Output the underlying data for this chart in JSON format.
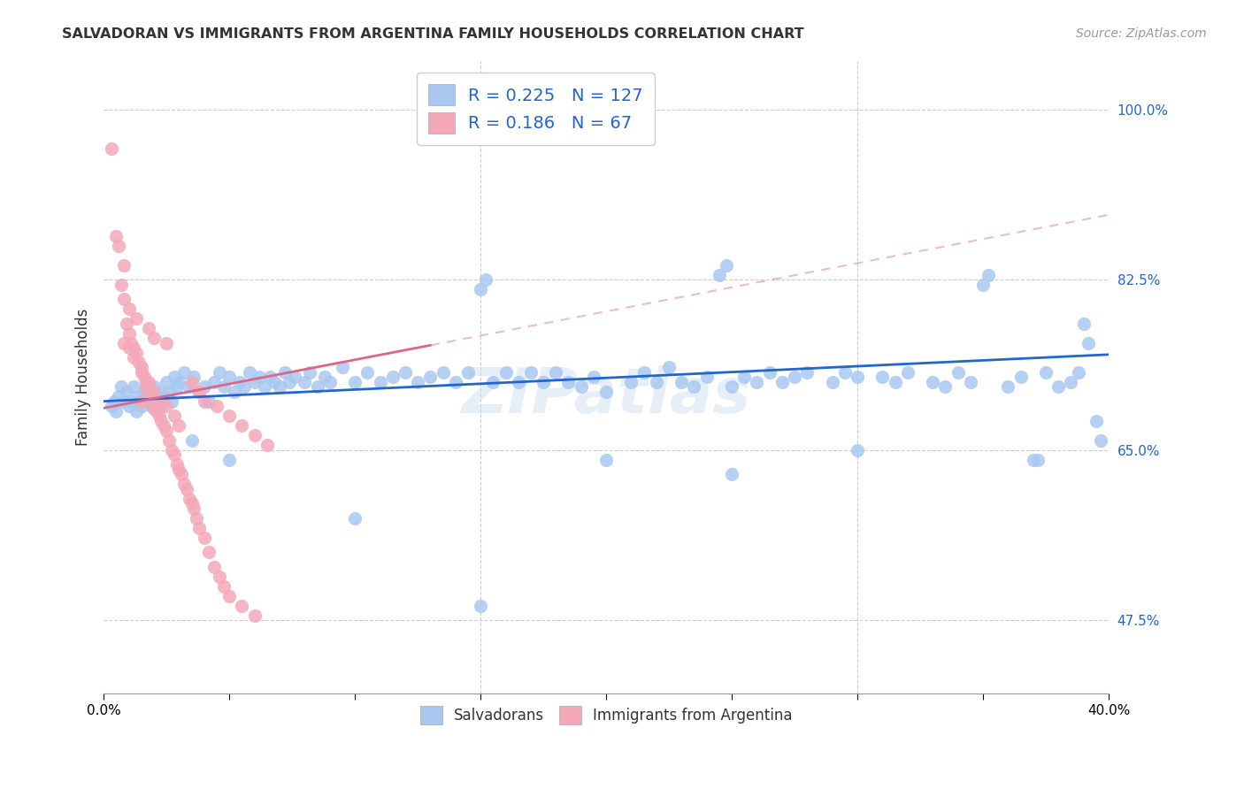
{
  "title": "SALVADORAN VS IMMIGRANTS FROM ARGENTINA FAMILY HOUSEHOLDS CORRELATION CHART",
  "source": "Source: ZipAtlas.com",
  "ylabel": "Family Households",
  "yticks": [
    "47.5%",
    "65.0%",
    "82.5%",
    "100.0%"
  ],
  "ytick_vals": [
    0.475,
    0.65,
    0.825,
    1.0
  ],
  "xlim": [
    0.0,
    0.4
  ],
  "ylim": [
    0.4,
    1.05
  ],
  "blue_color": "#A8C8F0",
  "pink_color": "#F4A8B8",
  "blue_line_color": "#2266CC",
  "pink_line_color": "#DD6688",
  "legend_R1": "0.225",
  "legend_N1": "127",
  "legend_R2": "0.186",
  "legend_N2": "67",
  "watermark": "ZIPatlas",
  "blue_scatter": [
    [
      0.003,
      0.695
    ],
    [
      0.004,
      0.7
    ],
    [
      0.005,
      0.69
    ],
    [
      0.006,
      0.705
    ],
    [
      0.007,
      0.715
    ],
    [
      0.008,
      0.7
    ],
    [
      0.009,
      0.71
    ],
    [
      0.01,
      0.695
    ],
    [
      0.011,
      0.7
    ],
    [
      0.012,
      0.715
    ],
    [
      0.013,
      0.69
    ],
    [
      0.014,
      0.705
    ],
    [
      0.015,
      0.695
    ],
    [
      0.016,
      0.71
    ],
    [
      0.017,
      0.72
    ],
    [
      0.018,
      0.7
    ],
    [
      0.019,
      0.695
    ],
    [
      0.02,
      0.715
    ],
    [
      0.021,
      0.7
    ],
    [
      0.022,
      0.71
    ],
    [
      0.023,
      0.695
    ],
    [
      0.024,
      0.705
    ],
    [
      0.025,
      0.72
    ],
    [
      0.026,
      0.71
    ],
    [
      0.027,
      0.7
    ],
    [
      0.028,
      0.725
    ],
    [
      0.029,
      0.715
    ],
    [
      0.03,
      0.72
    ],
    [
      0.032,
      0.73
    ],
    [
      0.034,
      0.715
    ],
    [
      0.036,
      0.725
    ],
    [
      0.038,
      0.71
    ],
    [
      0.04,
      0.715
    ],
    [
      0.042,
      0.7
    ],
    [
      0.044,
      0.72
    ],
    [
      0.046,
      0.73
    ],
    [
      0.048,
      0.715
    ],
    [
      0.05,
      0.725
    ],
    [
      0.052,
      0.71
    ],
    [
      0.054,
      0.72
    ],
    [
      0.056,
      0.715
    ],
    [
      0.058,
      0.73
    ],
    [
      0.06,
      0.72
    ],
    [
      0.062,
      0.725
    ],
    [
      0.064,
      0.715
    ],
    [
      0.066,
      0.725
    ],
    [
      0.068,
      0.72
    ],
    [
      0.07,
      0.715
    ],
    [
      0.072,
      0.73
    ],
    [
      0.074,
      0.72
    ],
    [
      0.076,
      0.725
    ],
    [
      0.08,
      0.72
    ],
    [
      0.082,
      0.73
    ],
    [
      0.085,
      0.715
    ],
    [
      0.088,
      0.725
    ],
    [
      0.09,
      0.72
    ],
    [
      0.095,
      0.735
    ],
    [
      0.1,
      0.72
    ],
    [
      0.105,
      0.73
    ],
    [
      0.11,
      0.72
    ],
    [
      0.115,
      0.725
    ],
    [
      0.12,
      0.73
    ],
    [
      0.125,
      0.72
    ],
    [
      0.13,
      0.725
    ],
    [
      0.135,
      0.73
    ],
    [
      0.14,
      0.72
    ],
    [
      0.145,
      0.73
    ],
    [
      0.15,
      0.815
    ],
    [
      0.152,
      0.825
    ],
    [
      0.155,
      0.72
    ],
    [
      0.16,
      0.73
    ],
    [
      0.165,
      0.72
    ],
    [
      0.17,
      0.73
    ],
    [
      0.175,
      0.72
    ],
    [
      0.18,
      0.73
    ],
    [
      0.185,
      0.72
    ],
    [
      0.19,
      0.715
    ],
    [
      0.195,
      0.725
    ],
    [
      0.2,
      0.71
    ],
    [
      0.21,
      0.72
    ],
    [
      0.215,
      0.73
    ],
    [
      0.22,
      0.72
    ],
    [
      0.225,
      0.735
    ],
    [
      0.23,
      0.72
    ],
    [
      0.235,
      0.715
    ],
    [
      0.24,
      0.725
    ],
    [
      0.245,
      0.83
    ],
    [
      0.248,
      0.84
    ],
    [
      0.25,
      0.715
    ],
    [
      0.255,
      0.725
    ],
    [
      0.26,
      0.72
    ],
    [
      0.265,
      0.73
    ],
    [
      0.27,
      0.72
    ],
    [
      0.275,
      0.725
    ],
    [
      0.28,
      0.73
    ],
    [
      0.29,
      0.72
    ],
    [
      0.295,
      0.73
    ],
    [
      0.3,
      0.725
    ],
    [
      0.31,
      0.725
    ],
    [
      0.315,
      0.72
    ],
    [
      0.32,
      0.73
    ],
    [
      0.33,
      0.72
    ],
    [
      0.335,
      0.715
    ],
    [
      0.34,
      0.73
    ],
    [
      0.345,
      0.72
    ],
    [
      0.35,
      0.82
    ],
    [
      0.352,
      0.83
    ],
    [
      0.36,
      0.715
    ],
    [
      0.365,
      0.725
    ],
    [
      0.37,
      0.64
    ],
    [
      0.372,
      0.64
    ],
    [
      0.375,
      0.73
    ],
    [
      0.38,
      0.715
    ],
    [
      0.385,
      0.72
    ],
    [
      0.388,
      0.73
    ],
    [
      0.39,
      0.78
    ],
    [
      0.392,
      0.76
    ],
    [
      0.395,
      0.68
    ],
    [
      0.397,
      0.66
    ],
    [
      0.035,
      0.66
    ],
    [
      0.05,
      0.64
    ],
    [
      0.1,
      0.58
    ],
    [
      0.15,
      0.49
    ],
    [
      0.2,
      0.64
    ],
    [
      0.25,
      0.625
    ],
    [
      0.3,
      0.65
    ]
  ],
  "pink_scatter": [
    [
      0.003,
      0.96
    ],
    [
      0.005,
      0.87
    ],
    [
      0.006,
      0.86
    ],
    [
      0.007,
      0.82
    ],
    [
      0.008,
      0.84
    ],
    [
      0.009,
      0.78
    ],
    [
      0.01,
      0.77
    ],
    [
      0.011,
      0.76
    ],
    [
      0.012,
      0.755
    ],
    [
      0.013,
      0.75
    ],
    [
      0.014,
      0.74
    ],
    [
      0.015,
      0.73
    ],
    [
      0.016,
      0.725
    ],
    [
      0.017,
      0.715
    ],
    [
      0.018,
      0.71
    ],
    [
      0.019,
      0.7
    ],
    [
      0.02,
      0.695
    ],
    [
      0.021,
      0.69
    ],
    [
      0.022,
      0.685
    ],
    [
      0.023,
      0.68
    ],
    [
      0.024,
      0.675
    ],
    [
      0.025,
      0.67
    ],
    [
      0.026,
      0.66
    ],
    [
      0.027,
      0.65
    ],
    [
      0.028,
      0.645
    ],
    [
      0.029,
      0.635
    ],
    [
      0.03,
      0.63
    ],
    [
      0.031,
      0.625
    ],
    [
      0.032,
      0.615
    ],
    [
      0.033,
      0.61
    ],
    [
      0.034,
      0.6
    ],
    [
      0.035,
      0.595
    ],
    [
      0.036,
      0.59
    ],
    [
      0.037,
      0.58
    ],
    [
      0.038,
      0.57
    ],
    [
      0.04,
      0.56
    ],
    [
      0.042,
      0.545
    ],
    [
      0.044,
      0.53
    ],
    [
      0.046,
      0.52
    ],
    [
      0.048,
      0.51
    ],
    [
      0.05,
      0.5
    ],
    [
      0.055,
      0.49
    ],
    [
      0.06,
      0.48
    ],
    [
      0.008,
      0.76
    ],
    [
      0.01,
      0.755
    ],
    [
      0.012,
      0.745
    ],
    [
      0.015,
      0.735
    ],
    [
      0.018,
      0.72
    ],
    [
      0.02,
      0.71
    ],
    [
      0.022,
      0.7
    ],
    [
      0.025,
      0.695
    ],
    [
      0.028,
      0.685
    ],
    [
      0.03,
      0.675
    ],
    [
      0.035,
      0.72
    ],
    [
      0.038,
      0.71
    ],
    [
      0.04,
      0.7
    ],
    [
      0.045,
      0.695
    ],
    [
      0.05,
      0.685
    ],
    [
      0.055,
      0.675
    ],
    [
      0.06,
      0.665
    ],
    [
      0.065,
      0.655
    ],
    [
      0.008,
      0.805
    ],
    [
      0.01,
      0.795
    ],
    [
      0.013,
      0.785
    ],
    [
      0.018,
      0.775
    ],
    [
      0.02,
      0.765
    ],
    [
      0.025,
      0.76
    ],
    [
      0.015,
      0.7
    ],
    [
      0.02,
      0.692
    ]
  ]
}
